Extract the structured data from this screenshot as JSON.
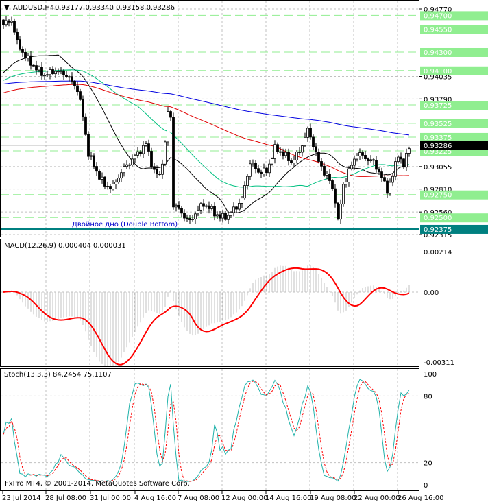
{
  "header": {
    "symbol": "AUDUSD,H4",
    "ohlc": "0.93177 0.93340 0.93158 0.93286"
  },
  "annotation": "Двойное дно (Double Bottom)",
  "copyright": "FxPro MT4, © 2001-2014, MetaQuotes Software Corp.",
  "colors": {
    "bull": "#000000",
    "level": "#90ee90",
    "support": "#008080",
    "ma_fast": "#000000",
    "ma_mid": "#00c080",
    "ma_slow": "#e00000",
    "ma_long": "#0000e0",
    "signal": "#ff0000",
    "stoch_k": "#20b2aa"
  },
  "price_axis": {
    "labels": [
      "0.94770",
      "0.94035",
      "0.93790",
      "0.93055",
      "0.92810",
      "0.92560",
      "0.92315"
    ],
    "levels": [
      "0.94700",
      "0.94550",
      "0.94300",
      "0.94100",
      "0.93725",
      "0.93525",
      "0.93375",
      "0.93225",
      "0.92750",
      "0.92500"
    ],
    "support": "0.92375",
    "current": "0.93286"
  },
  "macd": {
    "title": "MACD(12,26,9) 0.000404 0.000031",
    "labels": [
      "0.00214",
      "0.00",
      "-0.00311"
    ]
  },
  "stoch": {
    "title": "Stoch(13,3,3) 84.2454 75.1107",
    "labels": [
      "100",
      "80",
      "20",
      "0"
    ]
  },
  "time_axis": [
    "23 Jul 2014",
    "28 Jul 08:00",
    "31 Jul 00:00",
    "4 Aug 16:00",
    "7 Aug 08:00",
    "12 Aug 00:00",
    "14 Aug 16:00",
    "19 Aug 08:00",
    "22 Aug 00:00",
    "26 Aug 16:00"
  ],
  "chart_data": {
    "type": "candlestick",
    "bars": 149,
    "keypoints": [
      [
        0,
        0.946
      ],
      [
        3,
        0.9465
      ],
      [
        5,
        0.944
      ],
      [
        8,
        0.9425
      ],
      [
        12,
        0.9412
      ],
      [
        15,
        0.9405
      ],
      [
        19,
        0.941
      ],
      [
        23,
        0.9405
      ],
      [
        27,
        0.939
      ],
      [
        29,
        0.936
      ],
      [
        31,
        0.932
      ],
      [
        34,
        0.93
      ],
      [
        37,
        0.9285
      ],
      [
        40,
        0.9283
      ],
      [
        43,
        0.93
      ],
      [
        46,
        0.931
      ],
      [
        49,
        0.932
      ],
      [
        52,
        0.933
      ],
      [
        55,
        0.93
      ],
      [
        57,
        0.9295
      ],
      [
        59,
        0.933
      ],
      [
        60,
        0.9365
      ],
      [
        61,
        0.9358
      ],
      [
        62,
        0.9265
      ],
      [
        65,
        0.9255
      ],
      [
        68,
        0.9245
      ],
      [
        70,
        0.9255
      ],
      [
        73,
        0.9265
      ],
      [
        76,
        0.9258
      ],
      [
        79,
        0.925
      ],
      [
        82,
        0.9252
      ],
      [
        85,
        0.9262
      ],
      [
        87,
        0.927
      ],
      [
        90,
        0.931
      ],
      [
        93,
        0.93
      ],
      [
        96,
        0.93
      ],
      [
        99,
        0.9325
      ],
      [
        102,
        0.932
      ],
      [
        105,
        0.931
      ],
      [
        108,
        0.9322
      ],
      [
        111,
        0.9345
      ],
      [
        113,
        0.933
      ],
      [
        115,
        0.931
      ],
      [
        117,
        0.93
      ],
      [
        119,
        0.929
      ],
      [
        121,
        0.927
      ],
      [
        122,
        0.9245
      ],
      [
        124,
        0.9285
      ],
      [
        126,
        0.93
      ],
      [
        129,
        0.932
      ],
      [
        132,
        0.9315
      ],
      [
        135,
        0.931
      ],
      [
        137,
        0.93
      ],
      [
        140,
        0.928
      ],
      [
        142,
        0.9295
      ],
      [
        144,
        0.932
      ],
      [
        146,
        0.9305
      ],
      [
        148,
        0.9329
      ]
    ],
    "ylim": [
      0.92315,
      0.9477
    ],
    "ma_periods": [
      21,
      50,
      100,
      200
    ]
  }
}
